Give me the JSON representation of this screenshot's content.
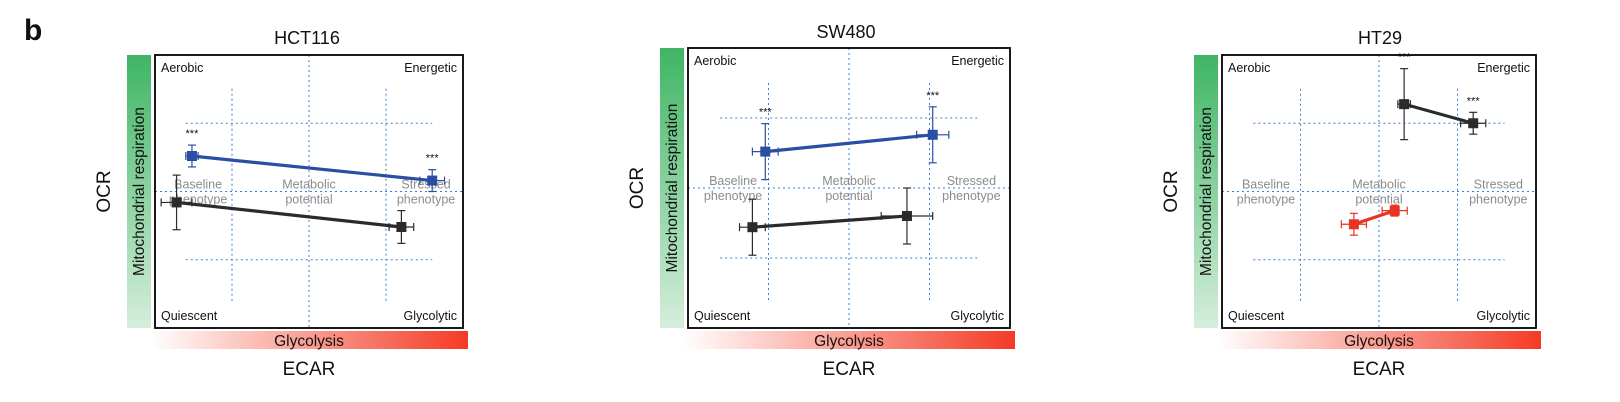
{
  "panel_letter": "b",
  "colors": {
    "ocr_gradient_top": "#3fb564",
    "ocr_gradient_bottom": "#d5eedb",
    "ecar_gradient_left": "#ffffff",
    "ecar_gradient_right": "#f53a25",
    "grid": "#3d7fd0"
  },
  "chart_data": [
    {
      "type": "scatter",
      "title": "HCT116",
      "xlabel": "ECAR",
      "ylabel": "OCR",
      "x_bar_label": "Glycolysis",
      "y_bar_label": "Mitochondrial respiration",
      "xlim": [
        0,
        1
      ],
      "ylim": [
        0,
        1
      ],
      "quadrants": {
        "top_left": "Aerobic",
        "top_right": "Energetic",
        "bottom_left": "Quiescent",
        "bottom_right": "Glycolytic"
      },
      "zones": [
        [
          "Baseline",
          "phenotype"
        ],
        [
          "Metabolic",
          "potential"
        ],
        [
          "Stressed",
          "phenotype"
        ]
      ],
      "series": [
        {
          "color": "#2a4ea3",
          "points": [
            {
              "x": 0.12,
              "y": 0.63,
              "xerr": 0.02,
              "yerr": 0.04,
              "sig": "***"
            },
            {
              "x": 0.9,
              "y": 0.54,
              "xerr": 0.04,
              "yerr": 0.04,
              "sig": "***"
            }
          ]
        },
        {
          "color": "#2b2b2b",
          "points": [
            {
              "x": 0.07,
              "y": 0.46,
              "xerr": 0.05,
              "yerr": 0.1,
              "sig": ""
            },
            {
              "x": 0.8,
              "y": 0.37,
              "xerr": 0.04,
              "yerr": 0.06,
              "sig": ""
            }
          ]
        }
      ]
    },
    {
      "type": "scatter",
      "title": "SW480",
      "xlabel": "ECAR",
      "ylabel": "OCR",
      "x_bar_label": "Glycolysis",
      "y_bar_label": "Mitochondrial respiration",
      "xlim": [
        0,
        1
      ],
      "ylim": [
        0,
        1
      ],
      "quadrants": {
        "top_left": "Aerobic",
        "top_right": "Energetic",
        "bottom_left": "Quiescent",
        "bottom_right": "Glycolytic"
      },
      "zones": [
        [
          "Baseline",
          "phenotype"
        ],
        [
          "Metabolic",
          "potential"
        ],
        [
          "Stressed",
          "phenotype"
        ]
      ],
      "series": [
        {
          "color": "#2a4ea3",
          "points": [
            {
              "x": 0.24,
              "y": 0.63,
              "xerr": 0.04,
              "yerr": 0.1,
              "sig": "***"
            },
            {
              "x": 0.76,
              "y": 0.69,
              "xerr": 0.05,
              "yerr": 0.1,
              "sig": "***"
            }
          ]
        },
        {
          "color": "#2b2b2b",
          "points": [
            {
              "x": 0.2,
              "y": 0.36,
              "xerr": 0.04,
              "yerr": 0.1,
              "sig": ""
            },
            {
              "x": 0.68,
              "y": 0.4,
              "xerr": 0.08,
              "yerr": 0.1,
              "sig": ""
            }
          ]
        }
      ]
    },
    {
      "type": "scatter",
      "title": "HT29",
      "xlabel": "ECAR",
      "ylabel": "OCR",
      "x_bar_label": "Glycolysis",
      "y_bar_label": "Mitochondrial respiration",
      "xlim": [
        0,
        1
      ],
      "ylim": [
        0,
        1
      ],
      "quadrants": {
        "top_left": "Aerobic",
        "top_right": "Energetic",
        "bottom_left": "Quiescent",
        "bottom_right": "Glycolytic"
      },
      "zones": [
        [
          "Baseline",
          "phenotype"
        ],
        [
          "Metabolic",
          "potential"
        ],
        [
          "Stressed",
          "phenotype"
        ]
      ],
      "series": [
        {
          "color": "#2b2b2b",
          "points": [
            {
              "x": 0.58,
              "y": 0.82,
              "xerr": 0.02,
              "yerr": 0.13,
              "sig": "***"
            },
            {
              "x": 0.8,
              "y": 0.75,
              "xerr": 0.04,
              "yerr": 0.04,
              "sig": "***"
            }
          ]
        },
        {
          "color": "#e83224",
          "points": [
            {
              "x": 0.42,
              "y": 0.38,
              "xerr": 0.04,
              "yerr": 0.04,
              "sig": ""
            },
            {
              "x": 0.55,
              "y": 0.43,
              "xerr": 0.04,
              "yerr": 0.02,
              "sig": ""
            }
          ]
        }
      ]
    }
  ]
}
